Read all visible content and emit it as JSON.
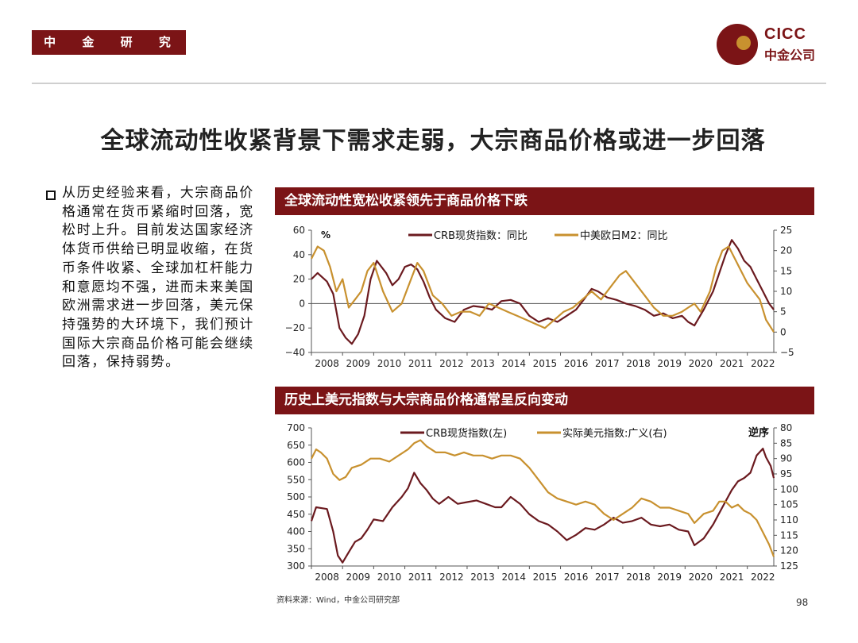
{
  "header": {
    "department": "中 金 研 究 部",
    "logo_en": "CICC",
    "logo_cn": "中金公司"
  },
  "title": "全球流动性收紧背景下需求走弱，大宗商品价格或进一步回落",
  "body_text": "从历史经验来看，大宗商品价格通常在货币紧缩时回落，宽松时上升。目前发达国家经济体货币供给已明显收缩，在货币条件收紧、全球加杠杆能力和意愿均不强，进而未来美国欧洲需求进一步回落，美元保持强势的大环境下，我们预计国际大宗商品价格可能会继续回落，保持弱势。",
  "footer": {
    "source": "资料来源：Wind，中金公司研究部",
    "page": "98"
  },
  "colors": {
    "brand": "#7b1416",
    "crb": "#6b1a1f",
    "gold": "#c8912f"
  },
  "chart_data": [
    {
      "type": "line",
      "title": "全球流动性宽松收紧领先于商品价格下跌",
      "unit_label": "%",
      "x_ticks": [
        "2008",
        "2009",
        "2010",
        "2011",
        "2012",
        "2013",
        "2014",
        "2015",
        "2016",
        "2017",
        "2018",
        "2019",
        "2020",
        "2021",
        "2022"
      ],
      "x_range": [
        2008.0,
        2022.85
      ],
      "y_left": {
        "range": [
          -40,
          60
        ],
        "ticks": [
          60,
          40,
          20,
          0,
          -20,
          -40
        ],
        "tick_labels": [
          "60",
          "40",
          "20",
          "0",
          "−20",
          "−40"
        ]
      },
      "y_right": {
        "range": [
          -5,
          25
        ],
        "ticks": [
          25,
          20,
          15,
          10,
          5,
          0,
          -5
        ],
        "tick_labels": [
          "25",
          "20",
          "15",
          "10",
          "5",
          "0",
          "−5"
        ]
      },
      "series": [
        {
          "name": "CRB现货指数：同比",
          "axis": "left",
          "color": "#6b1a1f",
          "x": [
            2008.0,
            2008.2,
            2008.5,
            2008.7,
            2008.9,
            2009.1,
            2009.3,
            2009.5,
            2009.7,
            2009.9,
            2010.1,
            2010.4,
            2010.6,
            2010.8,
            2011.0,
            2011.2,
            2011.4,
            2011.6,
            2011.8,
            2012.0,
            2012.3,
            2012.6,
            2012.9,
            2013.2,
            2013.5,
            2013.8,
            2014.1,
            2014.4,
            2014.7,
            2015.0,
            2015.3,
            2015.6,
            2015.9,
            2016.2,
            2016.5,
            2016.8,
            2017.0,
            2017.2,
            2017.5,
            2017.8,
            2018.1,
            2018.4,
            2018.7,
            2019.0,
            2019.3,
            2019.6,
            2019.9,
            2020.1,
            2020.3,
            2020.6,
            2020.9,
            2021.1,
            2021.3,
            2021.5,
            2021.7,
            2021.9,
            2022.1,
            2022.3,
            2022.5,
            2022.7,
            2022.85
          ],
          "values": [
            20,
            25,
            18,
            8,
            -20,
            -28,
            -33,
            -25,
            -10,
            20,
            35,
            25,
            15,
            20,
            30,
            32,
            28,
            18,
            5,
            -5,
            -12,
            -15,
            -5,
            -2,
            -3,
            -5,
            2,
            3,
            0,
            -10,
            -15,
            -12,
            -15,
            -10,
            -5,
            5,
            12,
            10,
            5,
            3,
            0,
            -2,
            -5,
            -10,
            -8,
            -12,
            -10,
            -15,
            -18,
            -5,
            10,
            25,
            40,
            52,
            45,
            35,
            30,
            20,
            10,
            0,
            -5
          ]
        },
        {
          "name": "中美欧日M2：同比",
          "axis": "right",
          "color": "#c8912f",
          "x": [
            2008.0,
            2008.2,
            2008.4,
            2008.6,
            2008.8,
            2009.0,
            2009.2,
            2009.4,
            2009.6,
            2009.8,
            2010.0,
            2010.3,
            2010.6,
            2010.9,
            2011.2,
            2011.4,
            2011.6,
            2011.9,
            2012.2,
            2012.5,
            2012.8,
            2013.1,
            2013.4,
            2013.7,
            2014.0,
            2014.3,
            2014.6,
            2014.9,
            2015.2,
            2015.5,
            2015.8,
            2016.1,
            2016.4,
            2016.7,
            2017.0,
            2017.3,
            2017.6,
            2017.9,
            2018.1,
            2018.4,
            2018.7,
            2019.0,
            2019.3,
            2019.6,
            2019.9,
            2020.1,
            2020.3,
            2020.5,
            2020.8,
            2021.0,
            2021.2,
            2021.4,
            2021.6,
            2021.8,
            2022.0,
            2022.2,
            2022.4,
            2022.6,
            2022.85
          ],
          "values": [
            18,
            21,
            20,
            16,
            10,
            13,
            6,
            8,
            10,
            15,
            17,
            10,
            5,
            7,
            13,
            17,
            15,
            9,
            7,
            4,
            5,
            5,
            4,
            7,
            6,
            5,
            4,
            3,
            2,
            1,
            3,
            5,
            6,
            8,
            10,
            8,
            11,
            14,
            15,
            12,
            9,
            6,
            4,
            4,
            5,
            6,
            7,
            5,
            10,
            16,
            20,
            21,
            18,
            15,
            12,
            10,
            8,
            3,
            0
          ]
        }
      ]
    },
    {
      "type": "line",
      "title": "历史上美元指数与大宗商品价格通常呈反向变动",
      "reverse_label": "逆序",
      "x_ticks": [
        "2008",
        "2009",
        "2010",
        "2011",
        "2012",
        "2013",
        "2014",
        "2015",
        "2016",
        "2017",
        "2018",
        "2019",
        "2020",
        "2021",
        "2022"
      ],
      "x_range": [
        2008.0,
        2022.85
      ],
      "y_left": {
        "range": [
          300,
          700
        ],
        "ticks": [
          700,
          650,
          600,
          550,
          500,
          450,
          400,
          350,
          300
        ],
        "tick_labels": [
          "700",
          "650",
          "600",
          "550",
          "500",
          "450",
          "400",
          "350",
          "300"
        ]
      },
      "y_right": {
        "range": [
          80,
          125
        ],
        "reversed": true,
        "ticks": [
          80,
          85,
          90,
          95,
          100,
          105,
          110,
          115,
          120,
          125
        ],
        "tick_labels": [
          "80",
          "85",
          "90",
          "95",
          "100",
          "105",
          "110",
          "115",
          "120",
          "125"
        ]
      },
      "series": [
        {
          "name": "CRB现货指数(左)",
          "axis": "left",
          "color": "#6b1a1f",
          "x": [
            2008.0,
            2008.15,
            2008.3,
            2008.5,
            2008.7,
            2008.85,
            2009.0,
            2009.2,
            2009.4,
            2009.6,
            2009.8,
            2010.0,
            2010.3,
            2010.6,
            2010.9,
            2011.1,
            2011.3,
            2011.5,
            2011.7,
            2011.9,
            2012.1,
            2012.4,
            2012.7,
            2013.0,
            2013.3,
            2013.6,
            2013.9,
            2014.1,
            2014.4,
            2014.7,
            2015.0,
            2015.3,
            2015.6,
            2015.9,
            2016.2,
            2016.5,
            2016.8,
            2017.1,
            2017.4,
            2017.7,
            2018.0,
            2018.3,
            2018.6,
            2018.9,
            2019.2,
            2019.5,
            2019.8,
            2020.1,
            2020.3,
            2020.6,
            2020.9,
            2021.2,
            2021.5,
            2021.7,
            2021.9,
            2022.1,
            2022.3,
            2022.5,
            2022.6,
            2022.75,
            2022.85
          ],
          "values": [
            430,
            470,
            468,
            465,
            400,
            330,
            310,
            340,
            370,
            380,
            405,
            435,
            430,
            470,
            500,
            525,
            570,
            540,
            520,
            495,
            480,
            500,
            480,
            485,
            490,
            480,
            470,
            470,
            500,
            480,
            450,
            430,
            420,
            400,
            375,
            390,
            410,
            405,
            420,
            440,
            425,
            430,
            440,
            420,
            415,
            420,
            405,
            400,
            360,
            380,
            420,
            470,
            520,
            545,
            555,
            570,
            620,
            640,
            615,
            590,
            555
          ]
        },
        {
          "name": "实际美元指数:广义(右)",
          "axis": "right",
          "color": "#c8912f",
          "x": [
            2008.0,
            2008.15,
            2008.3,
            2008.5,
            2008.7,
            2008.9,
            2009.1,
            2009.3,
            2009.6,
            2009.9,
            2010.2,
            2010.5,
            2010.8,
            2011.1,
            2011.3,
            2011.5,
            2011.7,
            2012.0,
            2012.3,
            2012.6,
            2012.9,
            2013.2,
            2013.5,
            2013.8,
            2014.1,
            2014.4,
            2014.7,
            2015.0,
            2015.3,
            2015.6,
            2015.9,
            2016.2,
            2016.5,
            2016.8,
            2017.1,
            2017.4,
            2017.7,
            2018.0,
            2018.3,
            2018.6,
            2018.9,
            2019.2,
            2019.5,
            2019.8,
            2020.1,
            2020.3,
            2020.6,
            2020.9,
            2021.1,
            2021.3,
            2021.5,
            2021.7,
            2021.9,
            2022.1,
            2022.3,
            2022.5,
            2022.7,
            2022.85
          ],
          "values": [
            90,
            87,
            88,
            90,
            95,
            97,
            96,
            93,
            92,
            90,
            90,
            91,
            89,
            87,
            85,
            84,
            86,
            88,
            88,
            89,
            88,
            89,
            89,
            90,
            89,
            89,
            90,
            93,
            97,
            101,
            103,
            104,
            105,
            104,
            105,
            108,
            110,
            108,
            106,
            103,
            104,
            106,
            106,
            107,
            108,
            111,
            108,
            107,
            104,
            104,
            106,
            105,
            107,
            108,
            110,
            114,
            118,
            122
          ]
        }
      ]
    }
  ]
}
